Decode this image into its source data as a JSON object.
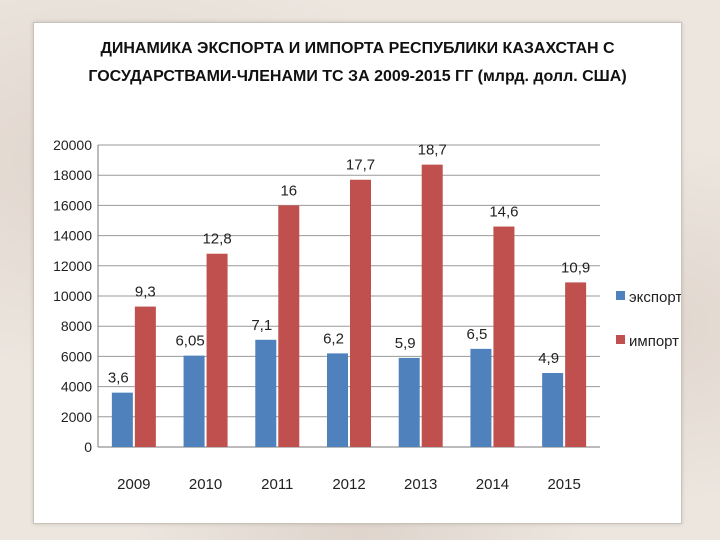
{
  "chart_data": {
    "type": "bar",
    "title_line1": "ДИНАМИКА ЭКСПОРТА И ИМПОРТА РЕСПУБЛИКИ КАЗАХСТАН С",
    "title_line2": "ГОСУДАРСТВАМИ-ЧЛЕНАМИ ТС ЗА 2009-2015 ГГ (млрд. долл. США)",
    "categories": [
      "2009",
      "2010",
      "2011",
      "2012",
      "2013",
      "2014",
      "2015"
    ],
    "series": [
      {
        "name": "экспорт",
        "color": "#4f81bd",
        "values": [
          3600,
          6050,
          7100,
          6200,
          5900,
          6500,
          4900
        ],
        "labels": [
          "3,6",
          "6,05",
          "7,1",
          "6,2",
          "5,9",
          "6,5",
          "4,9"
        ]
      },
      {
        "name": "импорт",
        "color": "#c0504d",
        "values": [
          9300,
          12800,
          16000,
          17700,
          18700,
          14600,
          10900
        ],
        "labels": [
          "9,3",
          "12,8",
          "16",
          "17,7",
          "18,7",
          "14,6",
          "10,9"
        ]
      }
    ],
    "ylim": [
      0,
      20000
    ],
    "yticks": [
      "0",
      "2000",
      "4000",
      "6000",
      "8000",
      "10000",
      "12000",
      "14000",
      "16000",
      "18000",
      "20000"
    ],
    "grid": true,
    "legend_position": "right"
  }
}
